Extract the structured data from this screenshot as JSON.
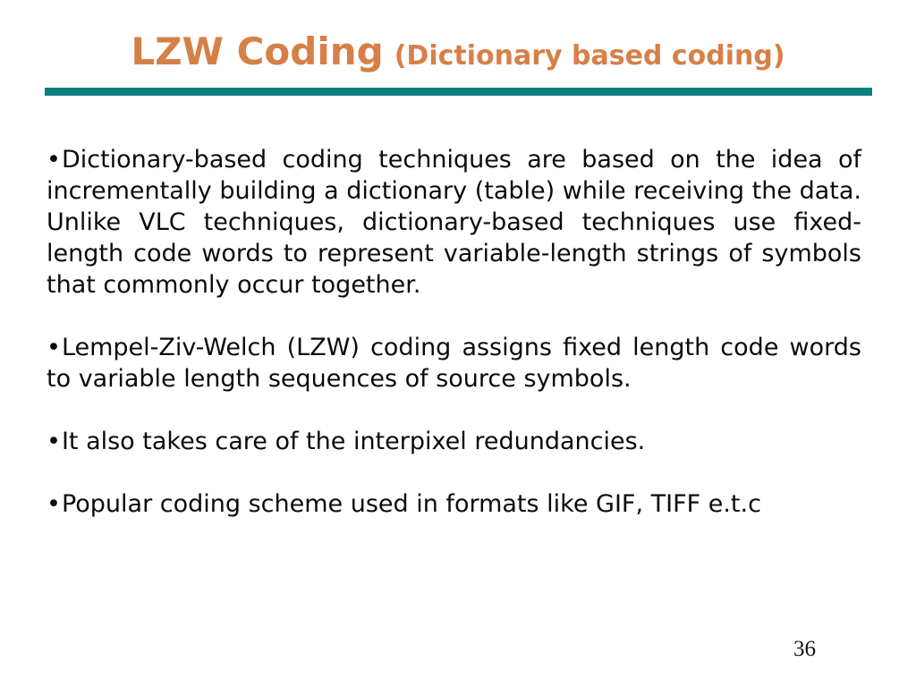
{
  "slide": {
    "title": "LZW Coding",
    "subtitle": "(Dictionary based coding)",
    "title_color": "#D68048",
    "rule_color": "#0E8080",
    "text_color": "#0b0b0b",
    "bullet_char": "•",
    "paragraphs": [
      {
        "text": "Dictionary-based coding techniques are based on the idea of incrementally building a dictionary (table) while receiving the data. Unlike VLC techniques, dictionary-based techniques use fixed-length code words to represent variable-length strings of symbols that commonly occur together."
      },
      {
        "text": "Lempel-Ziv-Welch (LZW) coding assigns fixed length code words to variable length sequences of source symbols."
      },
      {
        "text": "It also takes care of the interpixel redundancies."
      },
      {
        "text": "Popular coding scheme used in formats like GIF, TIFF e.t.c"
      }
    ],
    "page_number": "36"
  }
}
